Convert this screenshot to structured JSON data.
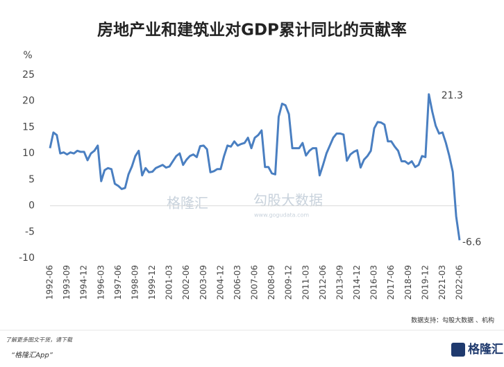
{
  "chart_data": {
    "type": "line",
    "title": "房地产业和建筑业对GDP累计同比的贡献率",
    "y_unit": "%",
    "categories": [
      "1992-06",
      null,
      null,
      null,
      null,
      "1993-09",
      null,
      null,
      null,
      null,
      "1994-12",
      null,
      null,
      null,
      null,
      "1996-03",
      null,
      null,
      null,
      null,
      "1997-06",
      null,
      null,
      null,
      null,
      "1998-09",
      null,
      null,
      null,
      null,
      "1999-12",
      null,
      null,
      null,
      null,
      "2001-03",
      null,
      null,
      null,
      null,
      "2002-06",
      null,
      null,
      null,
      null,
      "2003-09",
      null,
      null,
      null,
      null,
      "2004-12",
      null,
      null,
      null,
      null,
      "2006-03",
      null,
      null,
      null,
      null,
      "2007-06",
      null,
      null,
      null,
      null,
      "2008-09",
      null,
      null,
      null,
      null,
      "2009-12",
      null,
      null,
      null,
      null,
      "2011-03",
      null,
      null,
      null,
      null,
      "2012-06",
      null,
      null,
      null,
      null,
      "2013-09",
      null,
      null,
      null,
      null,
      "2014-12",
      null,
      null,
      null,
      null,
      "2016-03",
      null,
      null,
      null,
      null,
      "2017-06",
      null,
      null,
      null,
      null,
      "2018-09",
      null,
      null,
      null,
      null,
      "2019-12",
      null,
      null,
      null,
      null,
      "2021-03",
      null,
      null,
      null,
      null,
      "2022-06"
    ],
    "series": [
      {
        "name": "贡献率",
        "color": "#4a7fc1",
        "values": [
          11,
          14,
          13.5,
          10,
          10.2,
          9.8,
          10.2,
          10,
          10.5,
          10.3,
          10.3,
          8.7,
          10,
          10.5,
          11.5,
          4.7,
          6.8,
          7.2,
          7,
          4.2,
          3.8,
          3.2,
          3.4,
          6,
          7.5,
          9.5,
          10.5,
          5.8,
          7.2,
          6.4,
          6.5,
          7.2,
          7.5,
          7.8,
          7.3,
          7.5,
          8.5,
          9.5,
          10,
          7.8,
          8.8,
          9.5,
          9.8,
          9.3,
          11.4,
          11.5,
          10.8,
          6.4,
          6.6,
          7,
          7,
          9.5,
          11.5,
          11.3,
          12.3,
          11.5,
          11.8,
          12,
          13,
          11,
          13,
          13.5,
          14.4,
          7.4,
          7.4,
          6.2,
          6,
          17,
          19.5,
          19.2,
          17.5,
          11,
          11,
          11,
          12,
          9.6,
          10.5,
          11,
          11,
          5.8,
          7.8,
          10,
          11.5,
          13,
          13.8,
          13.8,
          13.6,
          8.6,
          9.8,
          10.3,
          10.6,
          7.3,
          8.8,
          9.5,
          10.5,
          14.8,
          16,
          15.9,
          15.5,
          12.3,
          12.3,
          11.3,
          10.5,
          8.5,
          8.5,
          8,
          8.5,
          7.4,
          7.8,
          9.5,
          9.3,
          21.3,
          18,
          15.3,
          13.8,
          14,
          12,
          9.5,
          6.5,
          -2,
          -6.6
        ]
      }
    ],
    "annotated_points": [
      111,
      120
    ],
    "ylim": [
      -10,
      25
    ],
    "yticks": [
      -10,
      -5,
      0,
      5,
      10,
      15,
      20,
      25
    ],
    "grid": false,
    "zero_line": true,
    "source": "数据支持：勾股大数据 、机构",
    "footer": [
      "了解更多图文干货，请下载",
      "“格隆汇App”"
    ],
    "logo": "格隆汇",
    "watermarks": [
      "格隆汇",
      "勾股大数据",
      "www.gogudata.com"
    ]
  }
}
